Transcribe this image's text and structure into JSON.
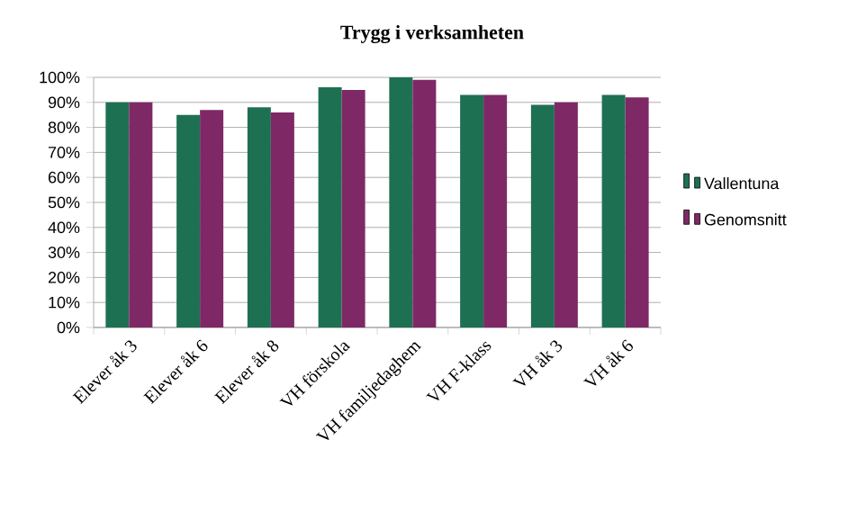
{
  "chart_data": {
    "type": "bar",
    "title": "Trygg i verksamheten",
    "categories": [
      "Elever åk 3",
      "Elever åk 6",
      "Elever åk 8",
      "VH förskola",
      "VH familjedaghem",
      "VH F-klass",
      "VH åk 3",
      "VH åk 6"
    ],
    "series": [
      {
        "name": "Vallentuna",
        "color": "#1e7052",
        "values": [
          90,
          85,
          88,
          96,
          100,
          93,
          89,
          93
        ]
      },
      {
        "name": "Genomsnitt",
        "color": "#7e2966",
        "values": [
          90,
          87,
          86,
          95,
          99,
          93,
          90,
          92
        ]
      }
    ],
    "ylim": [
      0,
      100
    ],
    "yticks": [
      {
        "value": 0,
        "label": "0%"
      },
      {
        "value": 10,
        "label": "10%"
      },
      {
        "value": 20,
        "label": "20%"
      },
      {
        "value": 30,
        "label": "30%"
      },
      {
        "value": 40,
        "label": "40%"
      },
      {
        "value": 50,
        "label": "50%"
      },
      {
        "value": 60,
        "label": "60%"
      },
      {
        "value": 70,
        "label": "70%"
      },
      {
        "value": 80,
        "label": "80%"
      },
      {
        "value": 90,
        "label": "90%"
      },
      {
        "value": 100,
        "label": "100%"
      }
    ],
    "grid": "y",
    "legend": "right"
  }
}
